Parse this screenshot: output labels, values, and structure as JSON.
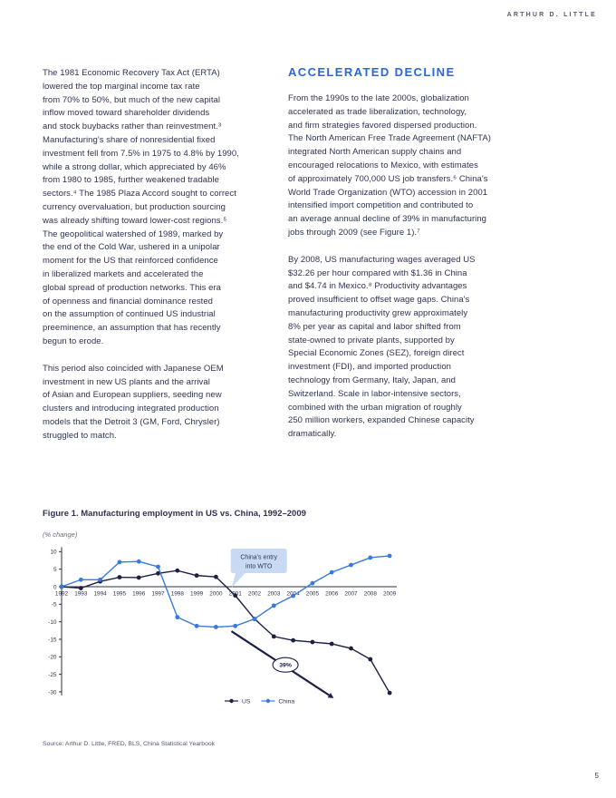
{
  "page": {
    "brand": "ARTHUR D. LITTLE",
    "page_number": "5"
  },
  "left_column": {
    "para1": "The 1981 Economic Recovery Tax Act (ERTA)\nlowered the top marginal income tax rate\nfrom 70% to 50%, but much of the new capital\ninflow moved toward shareholder dividends\nand stock buybacks rather than reinvestment.³\nManufacturing's share of nonresidential fixed\ninvestment fell from 7.5% in 1975 to 4.8% by 1990,\nwhile a strong dollar, which appreciated by 46%\nfrom 1980 to 1985, further weakened tradable\nsectors.⁴ The 1985 Plaza Accord sought to correct\ncurrency overvaluation, but production sourcing\nwas already shifting toward lower-cost regions.⁵\nThe geopolitical watershed of 1989, marked by\nthe end of the Cold War, ushered in a unipolar\nmoment for the US that reinforced confidence\nin liberalized markets and accelerated the\nglobal spread of production networks. This era\nof openness and financial dominance rested\non the assumption of continued US industrial\npreeminence, an assumption that has recently\nbegun to erode.",
    "para2": "This period also coincided with Japanese OEM\ninvestment in new US plants and the arrival\nof Asian and European suppliers, seeding new\nclusters and introducing integrated production\nmodels that the Detroit 3 (GM, Ford, Chrysler)\nstruggled to match."
  },
  "right_column": {
    "heading": "ACCELERATED DECLINE",
    "para1": "From the 1990s to the late 2000s, globalization\naccelerated as trade liberalization, technology,\nand firm strategies favored dispersed production.\nThe North American Free Trade Agreement (NAFTA)\nintegrated North American supply chains and\nencouraged relocations to Mexico, with estimates\nof approximately 700,000 US job transfers.⁶ China's\nWorld Trade Organization (WTO) accession in 2001\nintensified import competition and contributed to\nan average annual decline of 39% in manufacturing\njobs through 2009 (see Figure 1).⁷",
    "para2": "By 2008, US manufacturing wages averaged US\n$32.26 per hour compared with $1.36 in China\nand $4.74 in Mexico.⁸ Productivity advantages\nproved insufficient to offset wage gaps. China's\nmanufacturing productivity grew approximately\n8% per year as capital and labor shifted from\nstate-owned to private plants, supported by\nSpecial Economic Zones (SEZ), foreign direct\ninvestment (FDI), and imported production\ntechnology from Germany, Italy, Japan, and\nSwitzerland. Scale in labor-intensive sectors,\ncombined with the urban migration of roughly\n250 million workers, expanded Chinese capacity\ndramatically."
  },
  "figure": {
    "title": "Figure 1. Manufacturing employment in US vs. China, 1992–2009",
    "axis_unit": "(% change)",
    "source": "Source: Arthur D. Little, FRED, BLS, China Statistical Yearbook"
  },
  "chart_data": {
    "type": "line",
    "title": "Figure 1. Manufacturing employment in US vs. China, 1992–2009",
    "ylabel": "(% change)",
    "x": [
      1992,
      1993,
      1994,
      1995,
      1996,
      1997,
      1998,
      1999,
      2000,
      2001,
      2002,
      2003,
      2004,
      2005,
      2006,
      2007,
      2008,
      2009
    ],
    "series": [
      {
        "name": "US",
        "color": "#1c2144",
        "values": [
          0,
          -0.4,
          1.5,
          2.7,
          2.6,
          3.8,
          4.6,
          3.2,
          2.8,
          -2.5,
          -9.2,
          -14.2,
          -15.3,
          -15.8,
          -16.3,
          -17.6,
          -20.7,
          -30.3
        ]
      },
      {
        "name": "China",
        "color": "#3a79de",
        "values": [
          0,
          2,
          2,
          7,
          7.2,
          5.7,
          -8.7,
          -11.2,
          -11.5,
          -11.2,
          -9.2,
          -5.4,
          -2.6,
          1,
          4.1,
          6.2,
          8.3,
          8.8
        ]
      }
    ],
    "ylim": [
      -30,
      10
    ],
    "yticks": [
      10,
      5,
      0,
      -5,
      -10,
      -15,
      -20,
      -25,
      -30
    ],
    "grid": false,
    "legend_position": "bottom-center",
    "axis_color": "#2a2f4a",
    "annotations": {
      "callout": {
        "text_lines": [
          "China's entry",
          "into WTO"
        ],
        "target_year": 2001,
        "box_color": "#c8daf3"
      },
      "arrow": {
        "label": "39%",
        "from": [
          2000.8,
          -12.7
        ],
        "to": [
          2006.1,
          -31.8
        ],
        "label_at": [
          2003.6,
          -22.3
        ]
      }
    }
  }
}
